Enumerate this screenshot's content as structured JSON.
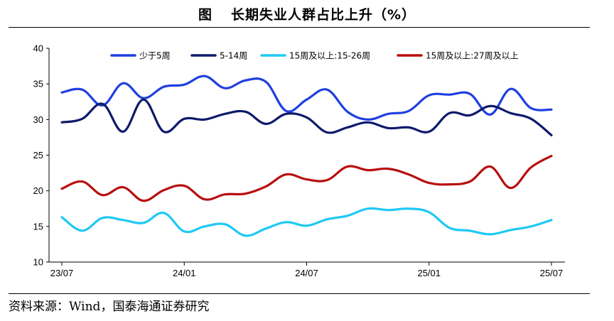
{
  "header": {
    "fig_label": "图",
    "title": "长期失业人群占比上升（%）"
  },
  "source": "资料来源：Wind，国泰海通证券研究",
  "chart_data": {
    "type": "line",
    "title": "长期失业人群占比上升（%）",
    "xlabel": "",
    "ylabel": "",
    "ylim": [
      10,
      40
    ],
    "yticks": [
      10,
      15,
      20,
      25,
      30,
      35,
      40
    ],
    "x": [
      "2023-07",
      "2023-08",
      "2023-09",
      "2023-10",
      "2023-11",
      "2023-12",
      "2024-01",
      "2024-02",
      "2024-03",
      "2024-04",
      "2024-05",
      "2024-06",
      "2024-07",
      "2024-08",
      "2024-09",
      "2024-10",
      "2024-11",
      "2024-12",
      "2025-01",
      "2025-02",
      "2025-03",
      "2025-04",
      "2025-05",
      "2025-06",
      "2025-07"
    ],
    "xticks": [
      {
        "label": "23/07",
        "index": 0
      },
      {
        "label": "24/01",
        "index": 6
      },
      {
        "label": "24/07",
        "index": 12
      },
      {
        "label": "25/01",
        "index": 18
      },
      {
        "label": "25/07",
        "index": 24
      }
    ],
    "legend_position": "top",
    "grid": false,
    "series": [
      {
        "name": "少于5周",
        "color": "#1f3fe0",
        "values": [
          33.8,
          34.2,
          32.0,
          35.1,
          33.0,
          34.6,
          34.9,
          36.1,
          34.4,
          35.5,
          35.3,
          31.2,
          32.8,
          34.2,
          31.1,
          30.0,
          30.8,
          31.2,
          33.4,
          33.5,
          33.6,
          30.7,
          34.3,
          31.6,
          31.4
        ]
      },
      {
        "name": "5-14周",
        "color": "#0d1a6b",
        "values": [
          29.6,
          30.1,
          32.2,
          28.3,
          32.8,
          28.3,
          30.1,
          30.0,
          30.8,
          31.1,
          29.4,
          30.8,
          30.3,
          28.2,
          28.9,
          29.6,
          28.8,
          28.9,
          28.3,
          30.9,
          30.6,
          31.9,
          30.9,
          30.1,
          27.8
        ]
      },
      {
        "name": "15周及以上:15-26周",
        "color": "#1ec9f5",
        "values": [
          16.3,
          14.4,
          16.2,
          15.9,
          15.5,
          16.9,
          14.3,
          15.0,
          15.3,
          13.7,
          14.7,
          15.6,
          15.1,
          16.0,
          16.5,
          17.5,
          17.3,
          17.5,
          17.0,
          14.8,
          14.4,
          13.9,
          14.5,
          15.0,
          15.9
        ]
      },
      {
        "name": "15周及以上:27周及以上",
        "color": "#b80f0f",
        "values": [
          20.3,
          21.3,
          19.4,
          20.5,
          18.6,
          20.1,
          20.7,
          18.8,
          19.5,
          19.6,
          20.6,
          22.3,
          21.6,
          21.5,
          23.4,
          22.9,
          23.1,
          22.3,
          21.1,
          20.9,
          21.3,
          23.4,
          20.4,
          23.3,
          24.9
        ]
      }
    ]
  }
}
